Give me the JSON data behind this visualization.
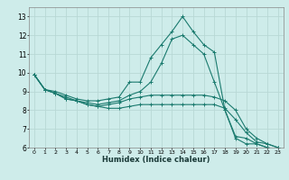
{
  "xlabel": "Humidex (Indice chaleur)",
  "background_color": "#ceecea",
  "grid_color": "#b8d8d5",
  "line_color": "#1a7a6e",
  "xlim": [
    -0.5,
    23.5
  ],
  "ylim": [
    6,
    13.5
  ],
  "yticks": [
    6,
    7,
    8,
    9,
    10,
    11,
    12,
    13
  ],
  "xticks": [
    0,
    1,
    2,
    3,
    4,
    5,
    6,
    7,
    8,
    9,
    10,
    11,
    12,
    13,
    14,
    15,
    16,
    17,
    18,
    19,
    20,
    21,
    22,
    23
  ],
  "series": [
    {
      "x": [
        0,
        1,
        2,
        3,
        4,
        5,
        6,
        7,
        8,
        9,
        10,
        11,
        12,
        13,
        14,
        15,
        16,
        17,
        18,
        19,
        20,
        21,
        22,
        23
      ],
      "y": [
        9.9,
        9.1,
        9.0,
        8.8,
        8.6,
        8.5,
        8.5,
        8.6,
        8.7,
        9.5,
        9.5,
        10.8,
        11.5,
        12.2,
        13.0,
        12.2,
        11.5,
        11.1,
        8.0,
        6.5,
        6.2,
        6.2,
        6.0,
        5.9
      ]
    },
    {
      "x": [
        0,
        1,
        2,
        3,
        4,
        5,
        6,
        7,
        8,
        9,
        10,
        11,
        12,
        13,
        14,
        15,
        16,
        17,
        18,
        19,
        20,
        21,
        22,
        23
      ],
      "y": [
        9.9,
        9.1,
        8.9,
        8.7,
        8.5,
        8.4,
        8.3,
        8.4,
        8.5,
        8.8,
        9.0,
        9.5,
        10.5,
        11.8,
        12.0,
        11.5,
        11.0,
        9.5,
        8.0,
        6.6,
        6.5,
        6.2,
        6.0,
        5.9
      ]
    },
    {
      "x": [
        0,
        1,
        2,
        3,
        4,
        5,
        6,
        7,
        8,
        9,
        10,
        11,
        12,
        13,
        14,
        15,
        16,
        17,
        18,
        19,
        20,
        21,
        22,
        23
      ],
      "y": [
        9.9,
        9.1,
        8.9,
        8.6,
        8.5,
        8.3,
        8.2,
        8.3,
        8.4,
        8.6,
        8.7,
        8.8,
        8.8,
        8.8,
        8.8,
        8.8,
        8.8,
        8.7,
        8.5,
        8.0,
        7.0,
        6.5,
        6.2,
        6.0
      ]
    },
    {
      "x": [
        0,
        1,
        2,
        3,
        4,
        5,
        6,
        7,
        8,
        9,
        10,
        11,
        12,
        13,
        14,
        15,
        16,
        17,
        18,
        19,
        20,
        21,
        22,
        23
      ],
      "y": [
        9.9,
        9.1,
        8.9,
        8.6,
        8.5,
        8.3,
        8.2,
        8.1,
        8.1,
        8.2,
        8.3,
        8.3,
        8.3,
        8.3,
        8.3,
        8.3,
        8.3,
        8.3,
        8.1,
        7.5,
        6.8,
        6.3,
        6.2,
        6.0
      ]
    }
  ]
}
